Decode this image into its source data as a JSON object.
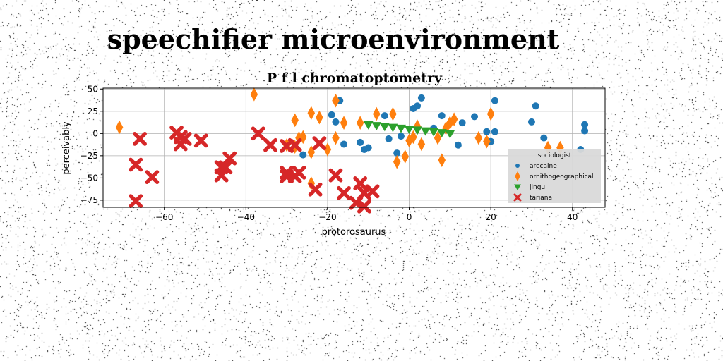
{
  "suptitle": "speechifier microenvironment",
  "chart_data": {
    "type": "scatter",
    "title": "P f l chromatoptometry",
    "xlabel": "protorosaurus",
    "ylabel": "perceivably",
    "xlim": [
      -75,
      48
    ],
    "ylim": [
      -83,
      51
    ],
    "xticks": [
      -60,
      -40,
      -20,
      0,
      20,
      40
    ],
    "yticks": [
      -75,
      -50,
      -25,
      0,
      25,
      50
    ],
    "grid": true,
    "legend": {
      "title": "sociologist",
      "placement": "lower-right"
    },
    "series": [
      {
        "name": "arecaine",
        "color": "#1f77b4",
        "marker": "circle",
        "points": [
          [
            -17,
            37
          ],
          [
            -19,
            21
          ],
          [
            -18,
            13
          ],
          [
            -16,
            -12
          ],
          [
            -12,
            -10
          ],
          [
            -10,
            -16
          ],
          [
            -11,
            -18
          ],
          [
            -6,
            20
          ],
          [
            -5,
            -6
          ],
          [
            -3,
            -22
          ],
          [
            1,
            28
          ],
          [
            2,
            31
          ],
          [
            3,
            40
          ],
          [
            8,
            20
          ],
          [
            12,
            -13
          ],
          [
            13,
            12
          ],
          [
            16,
            19
          ],
          [
            19,
            2
          ],
          [
            20,
            -9
          ],
          [
            21,
            37
          ],
          [
            21,
            2
          ],
          [
            30,
            13
          ],
          [
            31,
            31
          ],
          [
            33,
            -5
          ],
          [
            42,
            -18
          ],
          [
            43,
            10
          ],
          [
            43,
            3
          ],
          [
            -26,
            -24
          ],
          [
            -2,
            -3
          ],
          [
            6,
            6
          ]
        ]
      },
      {
        "name": "ornithogeographical",
        "color": "#ff7f0e",
        "marker": "diamond",
        "points": [
          [
            -71,
            7
          ],
          [
            -38,
            44
          ],
          [
            -30,
            -13
          ],
          [
            -28,
            -15
          ],
          [
            -28,
            15
          ],
          [
            -27,
            -5
          ],
          [
            -26,
            -4
          ],
          [
            -24,
            23
          ],
          [
            -24,
            -21
          ],
          [
            -24,
            -56
          ],
          [
            -22,
            18
          ],
          [
            -20,
            -18
          ],
          [
            -18,
            37
          ],
          [
            -18,
            -5
          ],
          [
            -16,
            12
          ],
          [
            -12,
            12
          ],
          [
            -8,
            22
          ],
          [
            -4,
            22
          ],
          [
            -3,
            -32
          ],
          [
            -1,
            -26
          ],
          [
            0,
            -8
          ],
          [
            1,
            -4
          ],
          [
            2,
            8
          ],
          [
            3,
            -12
          ],
          [
            7,
            -5
          ],
          [
            8,
            -30
          ],
          [
            9,
            6
          ],
          [
            10,
            12
          ],
          [
            11,
            16
          ],
          [
            17,
            -5
          ],
          [
            19,
            -9
          ],
          [
            20,
            22
          ],
          [
            34,
            -16
          ],
          [
            37,
            -16
          ]
        ]
      },
      {
        "name": "jingu",
        "color": "#2ca02c",
        "marker": "triangle",
        "points": [
          [
            -10,
            10
          ],
          [
            -8,
            9
          ],
          [
            -6,
            8
          ],
          [
            -4,
            7
          ],
          [
            -2,
            6
          ],
          [
            0,
            5
          ],
          [
            2,
            4
          ],
          [
            4,
            3
          ],
          [
            6,
            2
          ],
          [
            8,
            1
          ],
          [
            10,
            0
          ]
        ]
      },
      {
        "name": "tariana",
        "color": "#d62728",
        "marker": "x",
        "points": [
          [
            -66,
            -6
          ],
          [
            -67,
            -35
          ],
          [
            -63,
            -49
          ],
          [
            -67,
            -76
          ],
          [
            -57,
            1
          ],
          [
            -56,
            -4
          ],
          [
            -56,
            -12
          ],
          [
            -55,
            -6
          ],
          [
            -51,
            -8
          ],
          [
            -46,
            -38
          ],
          [
            -46,
            -47
          ],
          [
            -45,
            -38
          ],
          [
            -44,
            -28
          ],
          [
            -37,
            0
          ],
          [
            -34,
            -13
          ],
          [
            -30,
            -14
          ],
          [
            -30,
            -44
          ],
          [
            -30,
            -48
          ],
          [
            -28,
            -48
          ],
          [
            -28,
            -13
          ],
          [
            -27,
            -44
          ],
          [
            -22,
            -11
          ],
          [
            -18,
            -47
          ],
          [
            -16,
            -67
          ],
          [
            -13,
            -78
          ],
          [
            -12,
            -56
          ],
          [
            -11,
            -67
          ],
          [
            -9,
            -65
          ],
          [
            -11,
            -82
          ],
          [
            -23,
            -63
          ]
        ]
      }
    ]
  }
}
